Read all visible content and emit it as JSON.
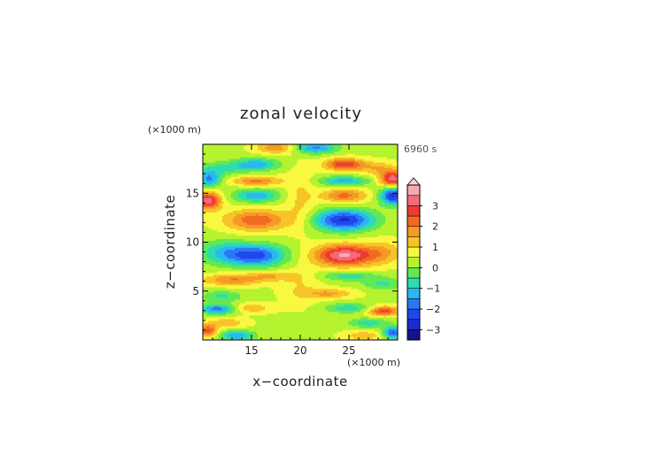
{
  "chart_data": {
    "type": "heatmap",
    "title": "zonal velocity",
    "xlabel": "x−coordinate",
    "ylabel": "z−coordinate",
    "x_unit": "(×1000 m)",
    "y_unit": "(×1000 m)",
    "time_label": "6960 s",
    "xlim": [
      10,
      30
    ],
    "ylim": [
      0,
      20
    ],
    "x_ticks": [
      {
        "value": 15,
        "label": "15"
      },
      {
        "value": 20,
        "label": "20"
      },
      {
        "value": 25,
        "label": "25"
      }
    ],
    "y_ticks": [
      {
        "value": 5,
        "label": "5"
      },
      {
        "value": 10,
        "label": "10"
      },
      {
        "value": 15,
        "label": "15"
      }
    ],
    "colorbar": {
      "ticks": [
        {
          "value": -3,
          "label": "−3"
        },
        {
          "value": -2,
          "label": "−2"
        },
        {
          "value": -1,
          "label": "−1"
        },
        {
          "value": 0,
          "label": "0"
        },
        {
          "value": 1,
          "label": "1"
        },
        {
          "value": 2,
          "label": "2"
        },
        {
          "value": 3,
          "label": "3"
        }
      ],
      "levels": [
        {
          "lo": -3.5,
          "hi": -3.0,
          "color": "#13138f"
        },
        {
          "lo": -3.0,
          "hi": -2.5,
          "color": "#1a2bd0"
        },
        {
          "lo": -2.5,
          "hi": -2.0,
          "color": "#2146ee"
        },
        {
          "lo": -2.0,
          "hi": -1.5,
          "color": "#2a78f5"
        },
        {
          "lo": -1.5,
          "hi": -1.0,
          "color": "#2ab8ee"
        },
        {
          "lo": -1.0,
          "hi": -0.5,
          "color": "#2ddcb0"
        },
        {
          "lo": -0.5,
          "hi": 0.0,
          "color": "#62e855"
        },
        {
          "lo": 0.0,
          "hi": 0.5,
          "color": "#b5f230"
        },
        {
          "lo": 0.5,
          "hi": 1.0,
          "color": "#f8f840"
        },
        {
          "lo": 1.0,
          "hi": 1.5,
          "color": "#f7c428"
        },
        {
          "lo": 1.5,
          "hi": 2.0,
          "color": "#f59a24"
        },
        {
          "lo": 2.0,
          "hi": 2.5,
          "color": "#f26a22"
        },
        {
          "lo": 2.5,
          "hi": 3.0,
          "color": "#ee3a30"
        },
        {
          "lo": 3.0,
          "hi": 3.5,
          "color": "#f26a7e"
        },
        {
          "lo": 3.5,
          "hi": 4.0,
          "color": "#f6aab0"
        }
      ],
      "extend_max": true
    },
    "features": [
      {
        "x": 21.5,
        "z": 19.7,
        "u": -2.0,
        "rx": 2.2,
        "rz": 0.6
      },
      {
        "x": 17.5,
        "z": 19.7,
        "u": 1.5,
        "rx": 2.0,
        "rz": 0.6
      },
      {
        "x": 24.5,
        "z": 18.0,
        "u": 2.5,
        "rx": 2.0,
        "rz": 0.6
      },
      {
        "x": 15.5,
        "z": 18.0,
        "u": -1.8,
        "rx": 2.2,
        "rz": 0.6
      },
      {
        "x": 12.0,
        "z": 17.6,
        "u": -1.0,
        "rx": 2.5,
        "rz": 0.7
      },
      {
        "x": 28.0,
        "z": 17.6,
        "u": 1.0,
        "rx": 2.0,
        "rz": 0.7
      },
      {
        "x": 24.5,
        "z": 16.3,
        "u": -1.7,
        "rx": 2.5,
        "rz": 0.5
      },
      {
        "x": 15.5,
        "z": 16.3,
        "u": 1.7,
        "rx": 2.5,
        "rz": 0.5
      },
      {
        "x": 29.5,
        "z": 16.5,
        "u": 3.0,
        "rx": 1.3,
        "rz": 0.8
      },
      {
        "x": 10.6,
        "z": 16.5,
        "u": -2.0,
        "rx": 1.3,
        "rz": 0.8
      },
      {
        "x": 24.5,
        "z": 14.8,
        "u": 1.8,
        "rx": 2.3,
        "rz": 0.7
      },
      {
        "x": 15.5,
        "z": 14.8,
        "u": -1.8,
        "rx": 2.3,
        "rz": 0.7
      },
      {
        "x": 29.5,
        "z": 14.8,
        "u": -3.0,
        "rx": 1.3,
        "rz": 0.9
      },
      {
        "x": 10.5,
        "z": 14.3,
        "u": 3.0,
        "rx": 1.3,
        "rz": 0.9
      },
      {
        "x": 24.5,
        "z": 12.3,
        "u": -3.0,
        "rx": 3.0,
        "rz": 1.1
      },
      {
        "x": 15.5,
        "z": 12.3,
        "u": 2.0,
        "rx": 3.2,
        "rz": 1.1
      },
      {
        "x": 12.0,
        "z": 9.0,
        "u": -1.2,
        "rx": 2.5,
        "rz": 1.2
      },
      {
        "x": 15.5,
        "z": 8.7,
        "u": -2.6,
        "rx": 3.0,
        "rz": 1.1
      },
      {
        "x": 24.5,
        "z": 8.7,
        "u": 3.2,
        "rx": 3.0,
        "rz": 1.1
      },
      {
        "x": 28.5,
        "z": 9.0,
        "u": 1.0,
        "rx": 2.0,
        "rz": 1.2
      },
      {
        "x": 13.0,
        "z": 6.2,
        "u": 1.6,
        "rx": 3.0,
        "rz": 0.6
      },
      {
        "x": 17.0,
        "z": 6.6,
        "u": 1.0,
        "rx": 2.5,
        "rz": 0.5
      },
      {
        "x": 25.0,
        "z": 6.6,
        "u": -1.2,
        "rx": 2.8,
        "rz": 0.5
      },
      {
        "x": 28.5,
        "z": 5.8,
        "u": -1.0,
        "rx": 2.0,
        "rz": 0.6
      },
      {
        "x": 12.0,
        "z": 4.5,
        "u": -1.0,
        "rx": 2.0,
        "rz": 0.6
      },
      {
        "x": 23.0,
        "z": 4.8,
        "u": 1.2,
        "rx": 2.5,
        "rz": 0.5
      },
      {
        "x": 11.5,
        "z": 3.2,
        "u": -2.2,
        "rx": 1.8,
        "rz": 0.5
      },
      {
        "x": 15.0,
        "z": 3.3,
        "u": 1.0,
        "rx": 2.0,
        "rz": 0.5
      },
      {
        "x": 25.0,
        "z": 3.3,
        "u": -1.2,
        "rx": 2.5,
        "rz": 0.5
      },
      {
        "x": 28.5,
        "z": 3.0,
        "u": 2.4,
        "rx": 1.6,
        "rz": 0.5
      },
      {
        "x": 12.5,
        "z": 1.8,
        "u": 1.0,
        "rx": 2.0,
        "rz": 0.5
      },
      {
        "x": 27.0,
        "z": 1.8,
        "u": -1.2,
        "rx": 2.0,
        "rz": 0.5
      },
      {
        "x": 10.5,
        "z": 1.0,
        "u": 2.2,
        "rx": 1.0,
        "rz": 0.6
      },
      {
        "x": 13.5,
        "z": 0.5,
        "u": -1.8,
        "rx": 1.8,
        "rz": 0.5
      },
      {
        "x": 26.5,
        "z": 0.5,
        "u": 1.0,
        "rx": 2.0,
        "rz": 0.5
      },
      {
        "x": 29.5,
        "z": 0.8,
        "u": -2.5,
        "rx": 1.0,
        "rz": 0.6
      },
      {
        "x": 20.0,
        "z": 5.5,
        "u": 0.6,
        "rx": 2.0,
        "rz": 2.0
      },
      {
        "x": 20.0,
        "z": 14.5,
        "u": 0.7,
        "rx": 1.5,
        "rz": 3.0
      }
    ]
  }
}
